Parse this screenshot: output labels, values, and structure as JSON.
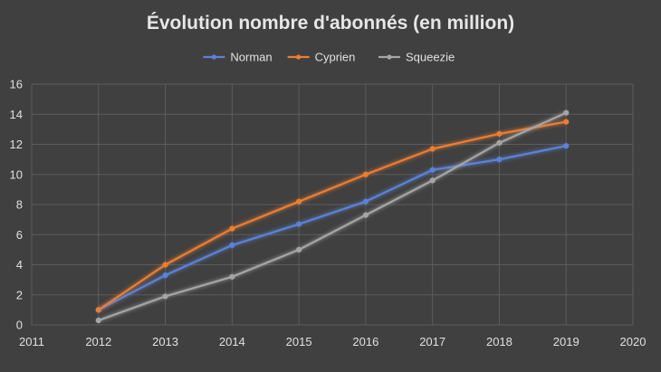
{
  "chart_data": {
    "type": "line",
    "title": "Évolution nombre d'abonnés (en million)",
    "xlabel": "",
    "ylabel": "",
    "xlim": [
      2011,
      2020
    ],
    "ylim": [
      0,
      16
    ],
    "x_ticks": [
      "2011",
      "2012",
      "2013",
      "2014",
      "2015",
      "2016",
      "2017",
      "2018",
      "2019",
      "2020"
    ],
    "y_ticks": [
      "0",
      "2",
      "4",
      "6",
      "8",
      "10",
      "12",
      "14",
      "16"
    ],
    "grid": true,
    "legend_position": "top",
    "x": [
      2012,
      2013,
      2014,
      2015,
      2016,
      2017,
      2018,
      2019
    ],
    "series": [
      {
        "name": "Norman",
        "color": "#5b82d6",
        "values": [
          1.0,
          3.3,
          5.3,
          6.7,
          8.2,
          10.3,
          11.0,
          11.9
        ]
      },
      {
        "name": "Cyprien",
        "color": "#ed7d31",
        "values": [
          1.0,
          4.0,
          6.4,
          8.2,
          10.0,
          11.7,
          12.7,
          13.5
        ]
      },
      {
        "name": "Squeezie",
        "color": "#a5a5a5",
        "values": [
          0.3,
          1.9,
          3.2,
          5.0,
          7.3,
          9.6,
          12.1,
          14.1
        ]
      }
    ]
  }
}
